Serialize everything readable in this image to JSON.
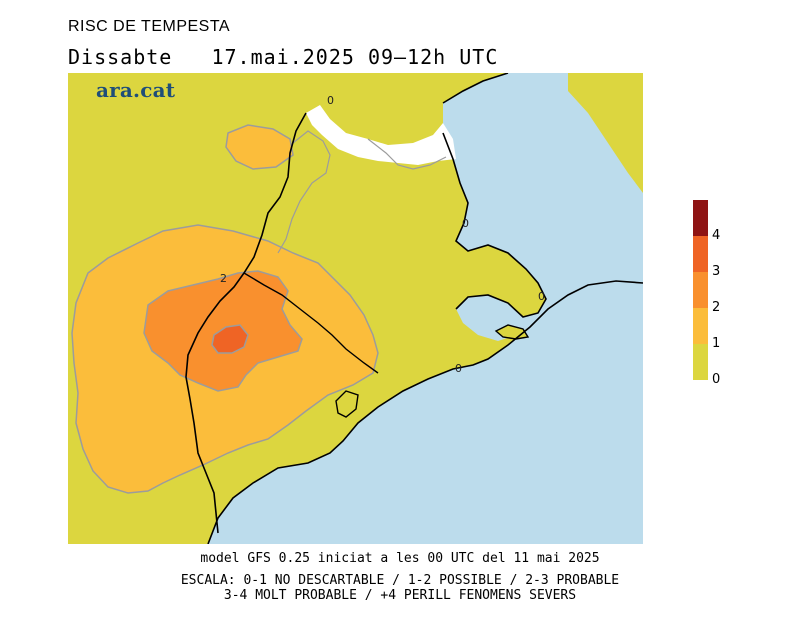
{
  "title": "RISC DE TEMPESTA",
  "subtitle": "Dissabte   17.mai.2025 09–12h UTC",
  "logo": "ara.cat",
  "contour_labels": [
    "0",
    "0",
    "0",
    "0",
    "2"
  ],
  "legend": {
    "ticks": [
      "4",
      "3",
      "2",
      "1",
      "0"
    ],
    "colors": {
      "level_0_1": "#dcd63f",
      "level_1_2": "#fbbd3b",
      "level_2_3": "#f9902e",
      "level_3_4": "#ef6425",
      "level_4_plus": "#8f1414"
    }
  },
  "map_colors": {
    "sea": "#bcdcec",
    "outside": "#ffffff",
    "coast": "#000000",
    "contour": "#9c9c9c"
  },
  "footer": {
    "model": "model GFS 0.25 iniciat a les 00 UTC del 11 mai 2025",
    "scale_line1": "ESCALA: 0-1 NO DESCARTABLE / 1-2 POSSIBLE / 2-3 PROBABLE",
    "scale_line2": "3-4 MOLT PROBABLE / +4 PERILL FENOMENS SEVERS"
  }
}
